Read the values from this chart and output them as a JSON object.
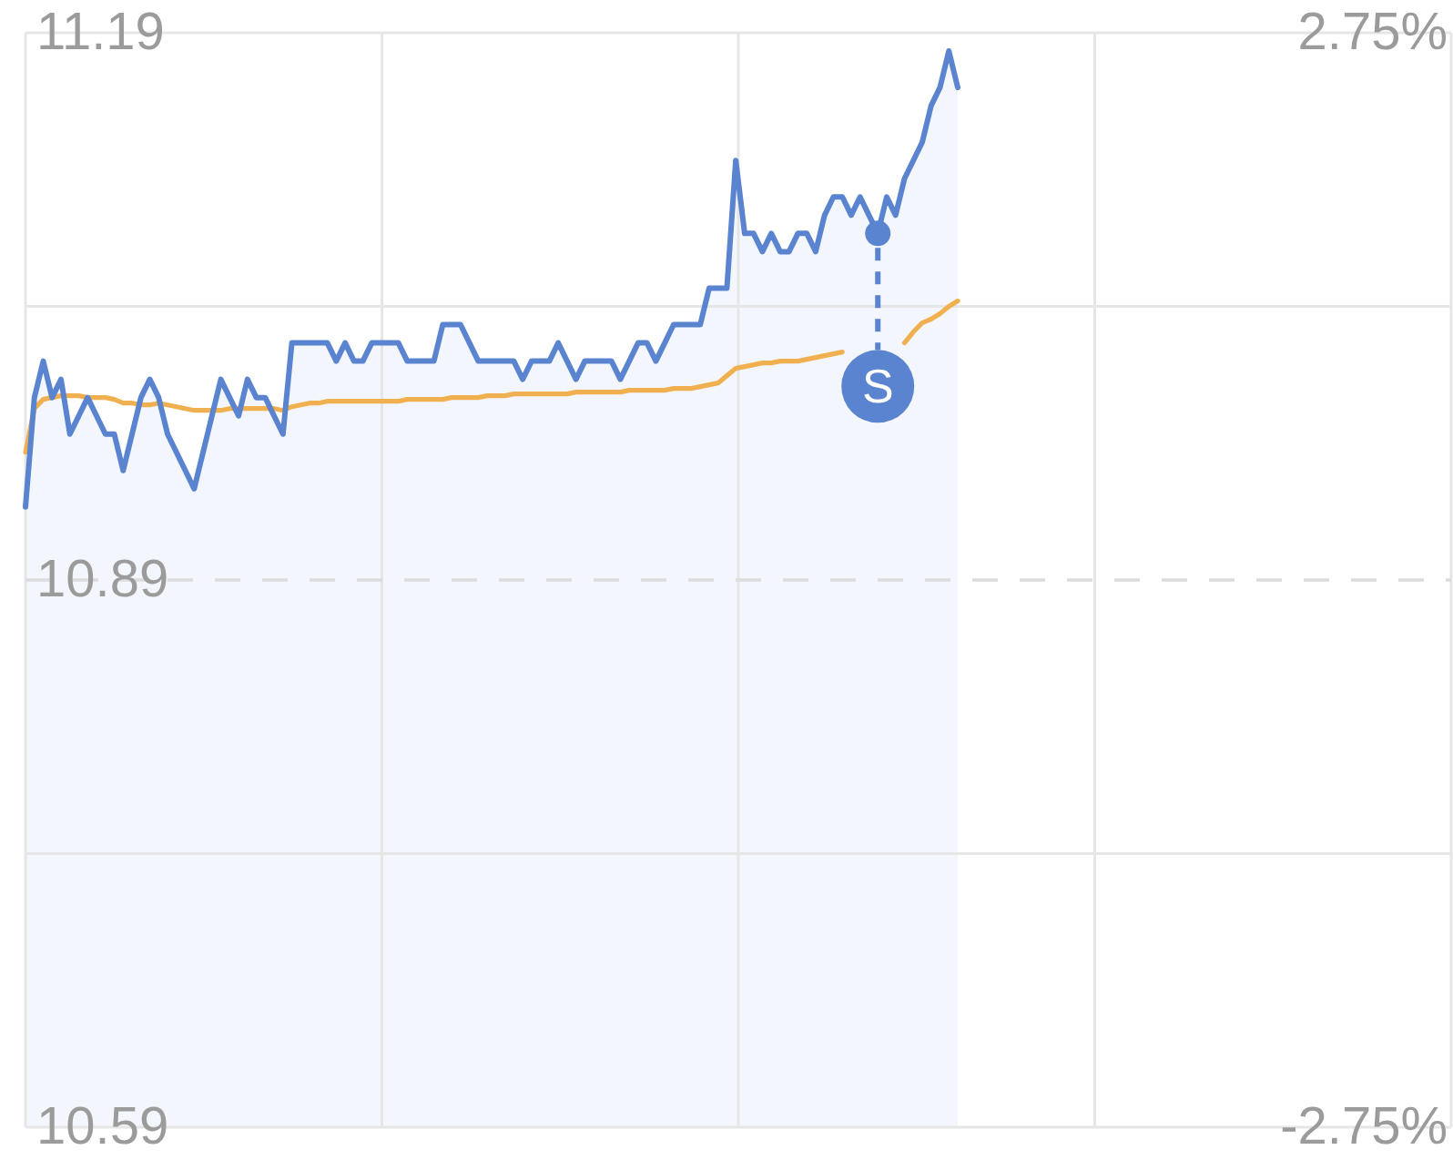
{
  "chart_data": {
    "type": "line",
    "categories": [
      null,
      null,
      null,
      null,
      null,
      null,
      null,
      null,
      null,
      null,
      null,
      null,
      null,
      null,
      null,
      null,
      null,
      null,
      null,
      null,
      null,
      null,
      null,
      null,
      null,
      null,
      null,
      null,
      null,
      null,
      null,
      null,
      null,
      null,
      null,
      null,
      null,
      null,
      null,
      null,
      null,
      null,
      null,
      null,
      null,
      null,
      null,
      null,
      null,
      null,
      null,
      null,
      null,
      null,
      null,
      null,
      null,
      null,
      null,
      null,
      null,
      null,
      null,
      null,
      null,
      null,
      null,
      null,
      null,
      null,
      null,
      null,
      null,
      null,
      null,
      null,
      null,
      null,
      null,
      null,
      null,
      null,
      null,
      null,
      null,
      null,
      null,
      null,
      null,
      null,
      null,
      null,
      null,
      null,
      null,
      null,
      null,
      null,
      null,
      null,
      null,
      null,
      null,
      null,
      null,
      null
    ],
    "series": [
      {
        "color": "#f0b050",
        "values": [
          10.96,
          10.984,
          10.989,
          10.99,
          10.991,
          10.991,
          10.991,
          10.99,
          10.99,
          10.99,
          10.989,
          10.987,
          10.987,
          10.986,
          10.986,
          10.987,
          10.986,
          10.985,
          10.984,
          10.983,
          10.983,
          10.983,
          10.983,
          10.984,
          10.984,
          10.984,
          10.984,
          10.984,
          10.984,
          10.983,
          10.985,
          10.986,
          10.987,
          10.987,
          10.988,
          10.988,
          10.988,
          10.988,
          10.988,
          10.988,
          10.988,
          10.988,
          10.988,
          10.989,
          10.989,
          10.989,
          10.989,
          10.989,
          10.99,
          10.99,
          10.99,
          10.99,
          10.991,
          10.991,
          10.991,
          10.992,
          10.992,
          10.992,
          10.992,
          10.992,
          10.992,
          10.992,
          10.993,
          10.993,
          10.993,
          10.993,
          10.993,
          10.993,
          10.994,
          10.994,
          10.994,
          10.994,
          10.994,
          10.995,
          10.995,
          10.995,
          10.996,
          10.997,
          10.998,
          11.002,
          11.006,
          11.007,
          11.008,
          11.009,
          11.009,
          11.01,
          11.01,
          11.01,
          11.011,
          11.012,
          11.013,
          11.014,
          11.015,
          null,
          null,
          null,
          null,
          null,
          null,
          11.02,
          11.026,
          11.031,
          11.033,
          11.036,
          11.04,
          11.043
        ]
      },
      {
        "type": "area",
        "color": "#5a84cf",
        "values": [
          10.93,
          10.99,
          11.01,
          10.99,
          11,
          10.97,
          10.98,
          10.99,
          10.98,
          10.97,
          10.97,
          10.95,
          10.97,
          10.99,
          11,
          10.99,
          10.97,
          10.96,
          10.95,
          10.94,
          10.96,
          10.98,
          11,
          10.99,
          10.98,
          11,
          10.99,
          10.99,
          10.98,
          10.97,
          11.02,
          11.02,
          11.02,
          11.02,
          11.02,
          11.01,
          11.02,
          11.01,
          11.01,
          11.02,
          11.02,
          11.02,
          11.02,
          11.01,
          11.01,
          11.01,
          11.01,
          11.03,
          11.03,
          11.03,
          11.02,
          11.01,
          11.01,
          11.01,
          11.01,
          11.01,
          11,
          11.01,
          11.01,
          11.01,
          11.02,
          11.01,
          11,
          11.01,
          11.01,
          11.01,
          11.01,
          11,
          11.01,
          11.02,
          11.02,
          11.01,
          11.02,
          11.03,
          11.03,
          11.03,
          11.03,
          11.05,
          11.05,
          11.05,
          11.12,
          11.08,
          11.08,
          11.07,
          11.08,
          11.07,
          11.07,
          11.08,
          11.08,
          11.07,
          11.09,
          11.1,
          11.1,
          11.09,
          11.1,
          11.09,
          11.08,
          11.1,
          11.09,
          11.11,
          11.12,
          11.13,
          11.15,
          11.16,
          11.18,
          11.16
        ]
      },
      {
        "type": "scatter",
        "color": "#5a84cf",
        "values": [
          null,
          null,
          null,
          null,
          null,
          null,
          null,
          null,
          null,
          null,
          null,
          null,
          null,
          null,
          null,
          null,
          null,
          null,
          null,
          null,
          null,
          null,
          null,
          null,
          null,
          null,
          null,
          null,
          null,
          null,
          null,
          null,
          null,
          null,
          null,
          null,
          null,
          null,
          null,
          null,
          null,
          null,
          null,
          null,
          null,
          null,
          null,
          null,
          null,
          null,
          null,
          null,
          null,
          null,
          null,
          null,
          null,
          null,
          null,
          null,
          null,
          null,
          null,
          null,
          null,
          null,
          null,
          null,
          null,
          null,
          null,
          null,
          null,
          null,
          null,
          null,
          null,
          null,
          null,
          null,
          null,
          null,
          null,
          null,
          null,
          null,
          null,
          null,
          null,
          null,
          null,
          null,
          null,
          null,
          null,
          null,
          11.08,
          null,
          null,
          null,
          null,
          null,
          null,
          null,
          null,
          null
        ]
      }
    ],
    "ylim": [
      10.59,
      11.19
    ],
    "yticks": [
      10.59,
      {
        "value": 10.74,
        "label": null
      },
      10.89,
      {
        "value": 11.04,
        "label": null
      },
      11.19
    ],
    "y2lim": [
      -2.75,
      2.75
    ],
    "y2ticks": [
      {
        "value": -2.75,
        "label": "-2.75%"
      },
      {
        "value": 2.75,
        "label": "2.75%"
      }
    ],
    "grid": true,
    "tick_labels": "y",
    "ref_lines": [
      {
        "axis": "y",
        "value": 10.89,
        "line_style": "dashed"
      }
    ],
    "annotations": [
      {
        "text": "S",
        "y": 11.08
      }
    ]
  }
}
